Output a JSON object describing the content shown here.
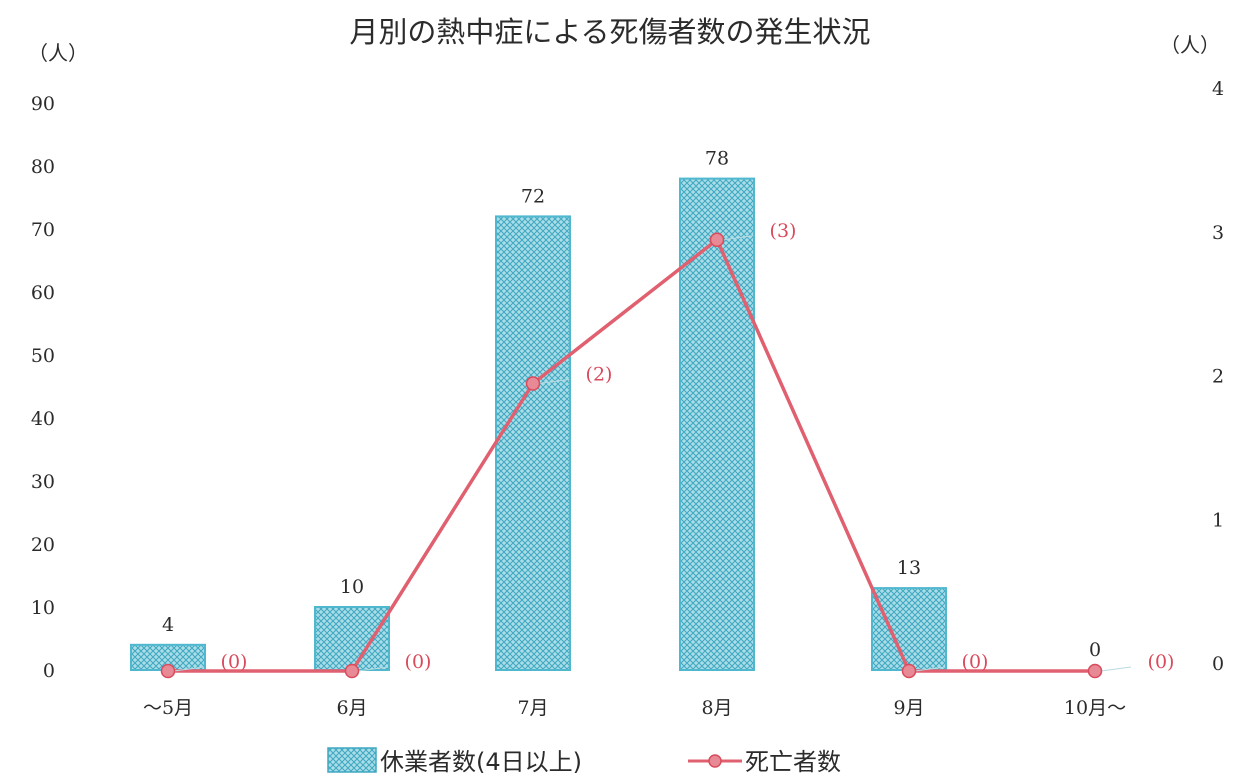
{
  "chart_data": {
    "type": "bar",
    "title": "月別の熱中症による死傷者数の発生状況",
    "left_unit": "（人）",
    "right_unit": "（人）",
    "categories": [
      "〜5月",
      "6月",
      "7月",
      "8月",
      "9月",
      "10月〜"
    ],
    "series": [
      {
        "name": "休業者数(4日以上)",
        "kind": "bar",
        "axis": "left",
        "values": [
          4,
          10,
          72,
          78,
          13,
          0
        ],
        "labels": [
          "4",
          "10",
          "72",
          "78",
          "13",
          "0"
        ],
        "color": "#4fb8cf"
      },
      {
        "name": "死亡者数",
        "kind": "line",
        "axis": "right",
        "values": [
          0,
          0,
          2,
          3,
          0,
          0
        ],
        "labels": [
          "(0)",
          "(0)",
          "(2)",
          "(3)",
          "(0)",
          "(0)"
        ],
        "color": "#e06070"
      }
    ],
    "y_left": {
      "range": [
        0,
        90
      ],
      "ticks": [
        "0",
        "10",
        "20",
        "30",
        "40",
        "50",
        "60",
        "70",
        "80",
        "90"
      ]
    },
    "y_right": {
      "range": [
        0,
        4
      ],
      "ticks": [
        "0",
        "1",
        "2",
        "3",
        "4"
      ]
    },
    "grid": false,
    "legend_position": "bottom"
  }
}
